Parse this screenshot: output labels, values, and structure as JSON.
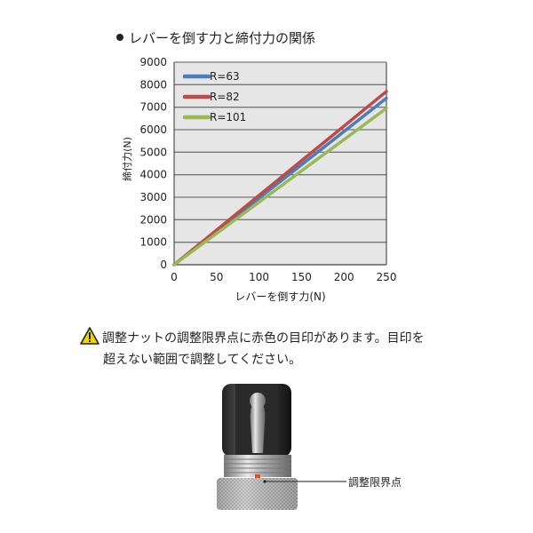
{
  "chart_data": {
    "type": "line",
    "title": "レバーを倒す力と締付力の関係",
    "xlabel": "レバーを倒す力(N)",
    "ylabel": "締付力(N)",
    "xlim": [
      0,
      250
    ],
    "ylim": [
      0,
      9000
    ],
    "xticks": [
      0,
      50,
      100,
      150,
      200,
      250
    ],
    "yticks": [
      0,
      1000,
      2000,
      3000,
      4000,
      5000,
      6000,
      7000,
      8000,
      9000
    ],
    "grid": true,
    "legend": "top-left",
    "background": "#e6e6e6",
    "series": [
      {
        "name": "R=63",
        "color": "#4a7ebb",
        "x": [
          0,
          250
        ],
        "y": [
          0,
          7400
        ]
      },
      {
        "name": "R=82",
        "color": "#be4b48",
        "x": [
          0,
          250
        ],
        "y": [
          0,
          7700
        ]
      },
      {
        "name": "R=101",
        "color": "#98b954",
        "x": [
          0,
          250
        ],
        "y": [
          0,
          6950
        ]
      }
    ]
  },
  "warning": {
    "icon": "warning-triangle-icon",
    "line1": "調整ナットの調整限界点に赤色の目印があります。目印を",
    "line2": "超えない範囲で調整してください。"
  },
  "photo": {
    "callout_label": "調整限界点"
  }
}
